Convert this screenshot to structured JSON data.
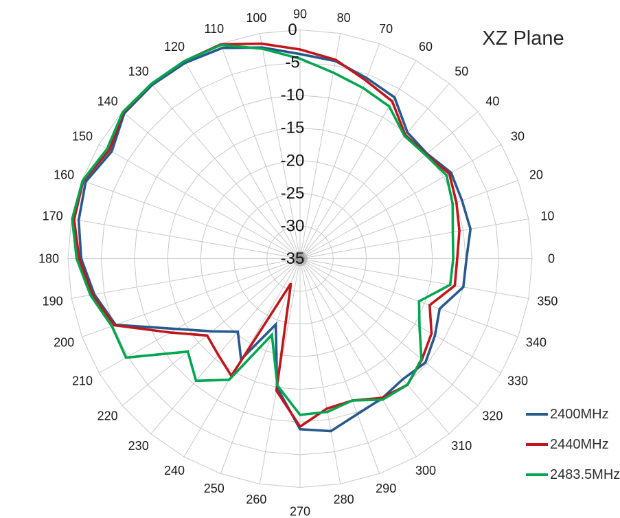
{
  "title": "XZ Plane",
  "legend": {
    "items": [
      {
        "label": "2400MHz",
        "color": "#27598C"
      },
      {
        "label": "2440MHz",
        "color": "#C0161C"
      },
      {
        "label": "2483.5MHz",
        "color": "#00A550"
      }
    ]
  },
  "chart_data": {
    "type": "line",
    "subtype": "polar-radar",
    "title": "XZ Plane",
    "angle_unit": "degrees",
    "angles": [
      0,
      10,
      20,
      30,
      40,
      50,
      60,
      70,
      80,
      90,
      100,
      110,
      120,
      130,
      140,
      150,
      160,
      170,
      180,
      190,
      200,
      210,
      220,
      230,
      240,
      250,
      260,
      270,
      280,
      290,
      300,
      310,
      320,
      330,
      340,
      350
    ],
    "angle_labels": [
      "0",
      "10",
      "20",
      "30",
      "40",
      "50",
      "60",
      "70",
      "80",
      "90",
      "100",
      "110",
      "120",
      "130",
      "140",
      "150",
      "160",
      "170",
      "180",
      "190",
      "200",
      "210",
      "220",
      "230",
      "240",
      "250",
      "260",
      "270",
      "280",
      "290",
      "300",
      "310",
      "320",
      "330",
      "340",
      "350"
    ],
    "radial_axis": {
      "min": -35,
      "max": 0,
      "step": 5,
      "tick_labels_top_to_center": [
        "0",
        "-5",
        "-10",
        "-15",
        "-20",
        "-25",
        "-30",
        "-35"
      ]
    },
    "grid": {
      "rings": 7,
      "spokes": 36,
      "color": "#c8c8c8",
      "hub_color": "#9a9a9a"
    },
    "legend_position": "bottom-right",
    "series": [
      {
        "name": "2400MHz",
        "color": "#27598C",
        "values": [
          -9.9,
          -8.9,
          -9.0,
          -8.7,
          -10.0,
          -9.8,
          -6.5,
          -5.6,
          -4.3,
          -3.7,
          -2.2,
          -0.7,
          -0.4,
          -0.3,
          -0.4,
          -2.2,
          -0.6,
          -1.1,
          -2.0,
          -3.5,
          -5.4,
          -13.5,
          -17.7,
          -20.4,
          -17.2,
          -24.3,
          -15.0,
          -8.9,
          -8.2,
          -9.7,
          -10.3,
          -10.9,
          -10.3,
          -11.5,
          -12.6,
          -10.0
        ]
      },
      {
        "name": "2440MHz",
        "color": "#C0161C",
        "values": [
          -11.3,
          -10.6,
          -9.9,
          -9.0,
          -10.2,
          -10.3,
          -7.2,
          -6.0,
          -4.1,
          -3.0,
          -1.6,
          -0.1,
          -0.1,
          -0.1,
          -0.2,
          -1.8,
          -0.2,
          -0.4,
          -1.7,
          -3.2,
          -5.2,
          -12.4,
          -16.7,
          -15.8,
          -14.3,
          -31.0,
          -14.5,
          -9.3,
          -11.7,
          -11.9,
          -10.4,
          -9.8,
          -11.0,
          -12.1,
          -14.2,
          -11.3
        ]
      },
      {
        "name": "2483.5MHz",
        "color": "#00A550",
        "values": [
          -11.9,
          -11.6,
          -10.5,
          -9.5,
          -10.3,
          -10.5,
          -8.1,
          -7.2,
          -6.1,
          -4.4,
          -2.4,
          -0.2,
          -0.1,
          -0.1,
          -0.1,
          -1.4,
          -0.1,
          -0.1,
          -1.3,
          -2.9,
          -4.8,
          -4.7,
          -12.9,
          -10.6,
          -13.6,
          -22.6,
          -15.3,
          -11.1,
          -11.2,
          -11.9,
          -10.1,
          -9.8,
          -11.1,
          -14.2,
          -15.9,
          -12.0
        ]
      }
    ]
  }
}
